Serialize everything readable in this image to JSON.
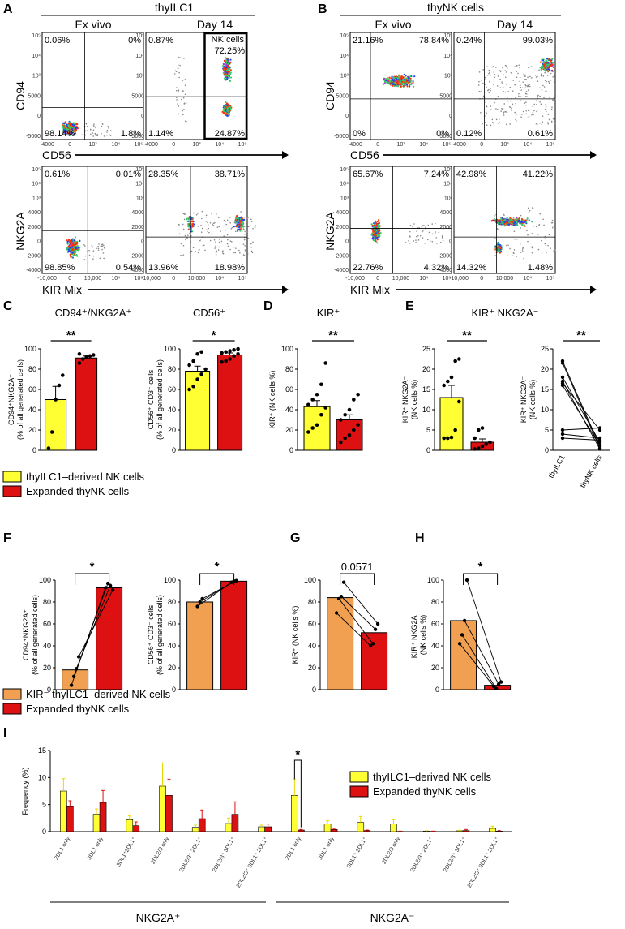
{
  "panel_letters": [
    "A",
    "B",
    "C",
    "D",
    "E",
    "F",
    "G",
    "H",
    "I"
  ],
  "colors": {
    "yellow": "#ffff33",
    "red": "#dd1111",
    "orange": "#f0a050",
    "dark": "#000000"
  },
  "flow_panels": {
    "A": {
      "title": "thyILC1",
      "col_ex": "Ex vivo",
      "col_d14": "Day 14",
      "top_ylabel": "CD94",
      "top_xlabel": "CD56",
      "bot_ylabel": "NKG2A",
      "bot_xlabel": "KIR Mix",
      "gate_label": "NK cells",
      "top_ex": [
        "0.06%",
        "0%",
        "98.14%",
        "1.8%"
      ],
      "top_d14": [
        "0.87%",
        "72.25%",
        "1.14%",
        "24.87%"
      ],
      "bot_ex": [
        "0.61%",
        "0.01%",
        "98.85%",
        "0.54%"
      ],
      "bot_d14": [
        "28.35%",
        "38.71%",
        "13.96%",
        "18.98%"
      ]
    },
    "B": {
      "title": "thyNK cells",
      "col_ex": "Ex vivo",
      "col_d14": "Day 14",
      "top_ylabel": "CD94",
      "top_xlabel": "CD56",
      "bot_ylabel": "NKG2A",
      "bot_xlabel": "KIR Mix",
      "top_ex": [
        "21.16%",
        "78.84%",
        "0%",
        "0%"
      ],
      "top_d14": [
        "0.24%",
        "99.03%",
        "0.12%",
        "0.61%"
      ],
      "bot_ex": [
        "65.67%",
        "7.24%",
        "22.76%",
        "4.32%"
      ],
      "bot_d14": [
        "42.98%",
        "41.22%",
        "14.32%",
        "1.48%"
      ]
    },
    "ticks": {
      "y_top": [
        "10⁵",
        "10⁴",
        "10³",
        "5000",
        "0",
        "-5000"
      ],
      "x_top": [
        "-4000",
        "0",
        "10³",
        "10⁴",
        "10⁵"
      ],
      "y_bot": [
        "10⁵",
        "10⁴",
        "10³",
        "4000",
        "2000",
        "0",
        "-2000",
        "-4000"
      ],
      "x_bot": [
        "-10,000",
        "0",
        "10,000",
        "10⁴",
        "10⁵"
      ]
    }
  },
  "legends": {
    "cde": [
      {
        "label": "thyILC1–derived NK cells",
        "color": "#ffff33"
      },
      {
        "label": "Expanded thyNK cells",
        "color": "#dd1111"
      }
    ],
    "fgh": [
      {
        "label": "KIR⁻ thyILC1–derived NK cells",
        "color": "#f0a050"
      },
      {
        "label": "Expanded thyNK cells",
        "color": "#dd1111"
      }
    ],
    "i": [
      {
        "label": "thyILC1–derived NK cells",
        "color": "#ffff33"
      },
      {
        "label": "Expanded thyNK cells",
        "color": "#dd1111"
      }
    ]
  },
  "chart_data": [
    {
      "id": "C1",
      "type": "bar",
      "title": "CD94⁺/NKG2A⁺",
      "ylabel": "CD94⁺NKG2A⁺ (% of all generated cells)",
      "ylim": [
        0,
        100
      ],
      "yticks": [
        0,
        20,
        40,
        60,
        80,
        100
      ],
      "series": [
        {
          "name": "thyILC1–derived NK cells",
          "value": 50,
          "err": 13,
          "points": [
            2,
            18,
            50,
            64,
            74
          ]
        },
        {
          "name": "Expanded thyNK cells",
          "value": 91,
          "err": 2,
          "points": [
            86,
            90,
            92,
            93,
            94,
            95
          ]
        }
      ],
      "sig": "**"
    },
    {
      "id": "C2",
      "type": "bar",
      "title": "CD56⁺",
      "ylabel": "CD56⁺ CD3⁻ cells (% of all generated cells)",
      "ylim": [
        0,
        100
      ],
      "yticks": [
        0,
        20,
        40,
        60,
        80,
        100
      ],
      "series": [
        {
          "name": "thyILC1–derived NK cells",
          "value": 78,
          "err": 5,
          "points": [
            60,
            63,
            70,
            75,
            80,
            84,
            88,
            95,
            97
          ]
        },
        {
          "name": "Expanded thyNK cells",
          "value": 94,
          "err": 2,
          "points": [
            87,
            88,
            90,
            93,
            95,
            96,
            97,
            98,
            99,
            100
          ]
        }
      ],
      "sig": "*"
    },
    {
      "id": "D",
      "type": "bar",
      "title": "KIR⁺",
      "ylabel": "KIR⁺ (NK cells %)",
      "ylim": [
        0,
        100
      ],
      "yticks": [
        0,
        20,
        40,
        60,
        80,
        100
      ],
      "series": [
        {
          "name": "thyILC1–derived NK cells",
          "value": 43,
          "err": 6,
          "points": [
            18,
            22,
            25,
            35,
            42,
            45,
            50,
            55,
            65,
            86
          ]
        },
        {
          "name": "Expanded thyNK cells",
          "value": 30,
          "err": 5,
          "points": [
            8,
            12,
            15,
            20,
            25,
            30,
            35,
            40,
            50,
            55
          ]
        }
      ],
      "sig": "**"
    },
    {
      "id": "E1",
      "type": "bar",
      "title": "KIR⁺ NKG2A⁻",
      "ylabel": "KIR⁺ NKG2A⁻ (NK cells %)",
      "ylim": [
        0,
        25
      ],
      "yticks": [
        0,
        5,
        10,
        15,
        20,
        25
      ],
      "series": [
        {
          "name": "thyILC1–derived NK cells",
          "value": 13,
          "err": 3,
          "points": [
            3,
            3,
            3.2,
            5,
            12,
            16,
            17,
            18,
            22,
            22.5
          ]
        },
        {
          "name": "Expanded thyNK cells",
          "value": 2,
          "err": 0.8,
          "points": [
            0.3,
            0.5,
            1,
            1.5,
            2,
            3,
            5,
            5.5
          ]
        }
      ],
      "sig": "**"
    },
    {
      "id": "E2",
      "type": "line",
      "ylabel": "KIR⁺ NKG2A⁻ (NK cells %)",
      "ylim": [
        0,
        25
      ],
      "yticks": [
        0,
        5,
        10,
        15,
        20,
        25
      ],
      "categories": [
        "thyILC1",
        "thyNK cells"
      ],
      "pairs": [
        [
          22,
          1
        ],
        [
          21.5,
          0.5
        ],
        [
          18,
          2
        ],
        [
          17,
          0.3
        ],
        [
          16.5,
          5
        ],
        [
          16,
          1.2
        ],
        [
          5,
          5.5
        ],
        [
          4,
          3
        ],
        [
          3,
          2.5
        ]
      ],
      "sig": "**"
    },
    {
      "id": "F1",
      "type": "bar",
      "ylabel": "CD94⁺NKG2A⁺ (% of all generated cells)",
      "ylim": [
        0,
        100
      ],
      "yticks": [
        0,
        20,
        40,
        60,
        80,
        100
      ],
      "series": [
        {
          "name": "KIR⁻ thyILC1–derived NK cells",
          "value": 18,
          "points": [
            4,
            12,
            19,
            30
          ]
        },
        {
          "name": "Expanded thyNK cells",
          "value": 93,
          "points": [
            91,
            93,
            95,
            97
          ]
        }
      ],
      "pairs": [
        [
          4,
          93
        ],
        [
          12,
          97
        ],
        [
          19,
          95
        ],
        [
          30,
          91
        ]
      ],
      "sig": "*"
    },
    {
      "id": "F2",
      "type": "bar",
      "ylabel": "CD56⁺ CD3⁻ cells (% of all generated cells)",
      "ylim": [
        0,
        100
      ],
      "yticks": [
        0,
        20,
        40,
        60,
        80,
        100
      ],
      "series": [
        {
          "name": "KIR⁻ thyILC1–derived NK cells",
          "value": 80,
          "points": [
            76,
            80,
            83
          ]
        },
        {
          "name": "Expanded thyNK cells",
          "value": 99,
          "points": [
            98,
            99,
            99.5
          ]
        }
      ],
      "pairs": [
        [
          76,
          98
        ],
        [
          80,
          99
        ],
        [
          83,
          99.5
        ]
      ],
      "sig": "*"
    },
    {
      "id": "G",
      "type": "bar",
      "ylabel": "KIR⁺ (NK cells %)",
      "ylim": [
        0,
        100
      ],
      "yticks": [
        0,
        20,
        40,
        60,
        80,
        100
      ],
      "series": [
        {
          "name": "KIR⁻ thyILC1–derived NK cells",
          "value": 84,
          "points": [
            70,
            83,
            85,
            98
          ]
        },
        {
          "name": "Expanded thyNK cells",
          "value": 52,
          "points": [
            40,
            42,
            55,
            60
          ]
        }
      ],
      "pairs": [
        [
          70,
          40
        ],
        [
          83,
          42
        ],
        [
          85,
          55
        ],
        [
          98,
          60
        ]
      ],
      "sig": "0.0571"
    },
    {
      "id": "H",
      "type": "bar",
      "ylabel": "KIR⁺ NKG2A⁻ (NK cells %)",
      "ylim": [
        0,
        100
      ],
      "yticks": [
        0,
        20,
        40,
        60,
        80,
        100
      ],
      "series": [
        {
          "name": "KIR⁻ thyILC1–derived NK cells",
          "value": 63,
          "points": [
            42,
            50,
            63,
            100
          ]
        },
        {
          "name": "Expanded thyNK cells",
          "value": 4,
          "points": [
            1,
            3,
            5,
            7
          ]
        }
      ],
      "pairs": [
        [
          42,
          3
        ],
        [
          50,
          1
        ],
        [
          63,
          5
        ],
        [
          100,
          7
        ]
      ],
      "sig": "*"
    },
    {
      "id": "I",
      "type": "bar",
      "ylabel": "Frequency (%)",
      "ylim": [
        0,
        15
      ],
      "yticks": [
        0,
        5,
        10,
        15
      ],
      "categories": [
        "2DL1 only",
        "3DL1 only",
        "3DL1⁺2DL1⁺",
        "2DL2/3 only",
        "2DL2/3⁺ 2DL1⁺",
        "2DL2/3⁺ 3DL1⁺",
        "2DL2/3⁺ 3DL1⁺ 2DL1⁺",
        "2DL1 only",
        "3DL1 only",
        "3DL1⁺ 2DL1⁺",
        "2DL2/3 only",
        "2DL2/3⁺ 2DL1⁺",
        "2DL2/3⁺ 3DL1⁺",
        "2DL2/3⁺ 3DL1⁺ 2DL1⁺"
      ],
      "series": [
        {
          "name": "thyILC1–derived NK cells",
          "values": [
            7.5,
            3.2,
            2.2,
            8.4,
            0.8,
            1.5,
            0.9,
            6.7,
            1.4,
            1.7,
            1.4,
            0.1,
            0.15,
            0.6
          ],
          "err": [
            2.3,
            1.0,
            0.7,
            4.3,
            0.4,
            1.0,
            0.3,
            3.0,
            0.6,
            1.1,
            0.8,
            0.1,
            0.1,
            0.4
          ]
        },
        {
          "name": "Expanded thyNK cells",
          "values": [
            4.6,
            5.4,
            1.1,
            6.7,
            2.4,
            3.2,
            0.9,
            0.3,
            0.4,
            0.2,
            0.05,
            0.05,
            0.2,
            0.1
          ],
          "err": [
            1.1,
            2.2,
            0.7,
            3.0,
            1.6,
            2.3,
            0.5,
            0.1,
            0.2,
            0.1,
            0.05,
            0.05,
            0.2,
            0.1
          ]
        }
      ],
      "sig": "*",
      "groups": [
        "NKG2A⁺",
        "NKG2A⁻"
      ]
    }
  ]
}
